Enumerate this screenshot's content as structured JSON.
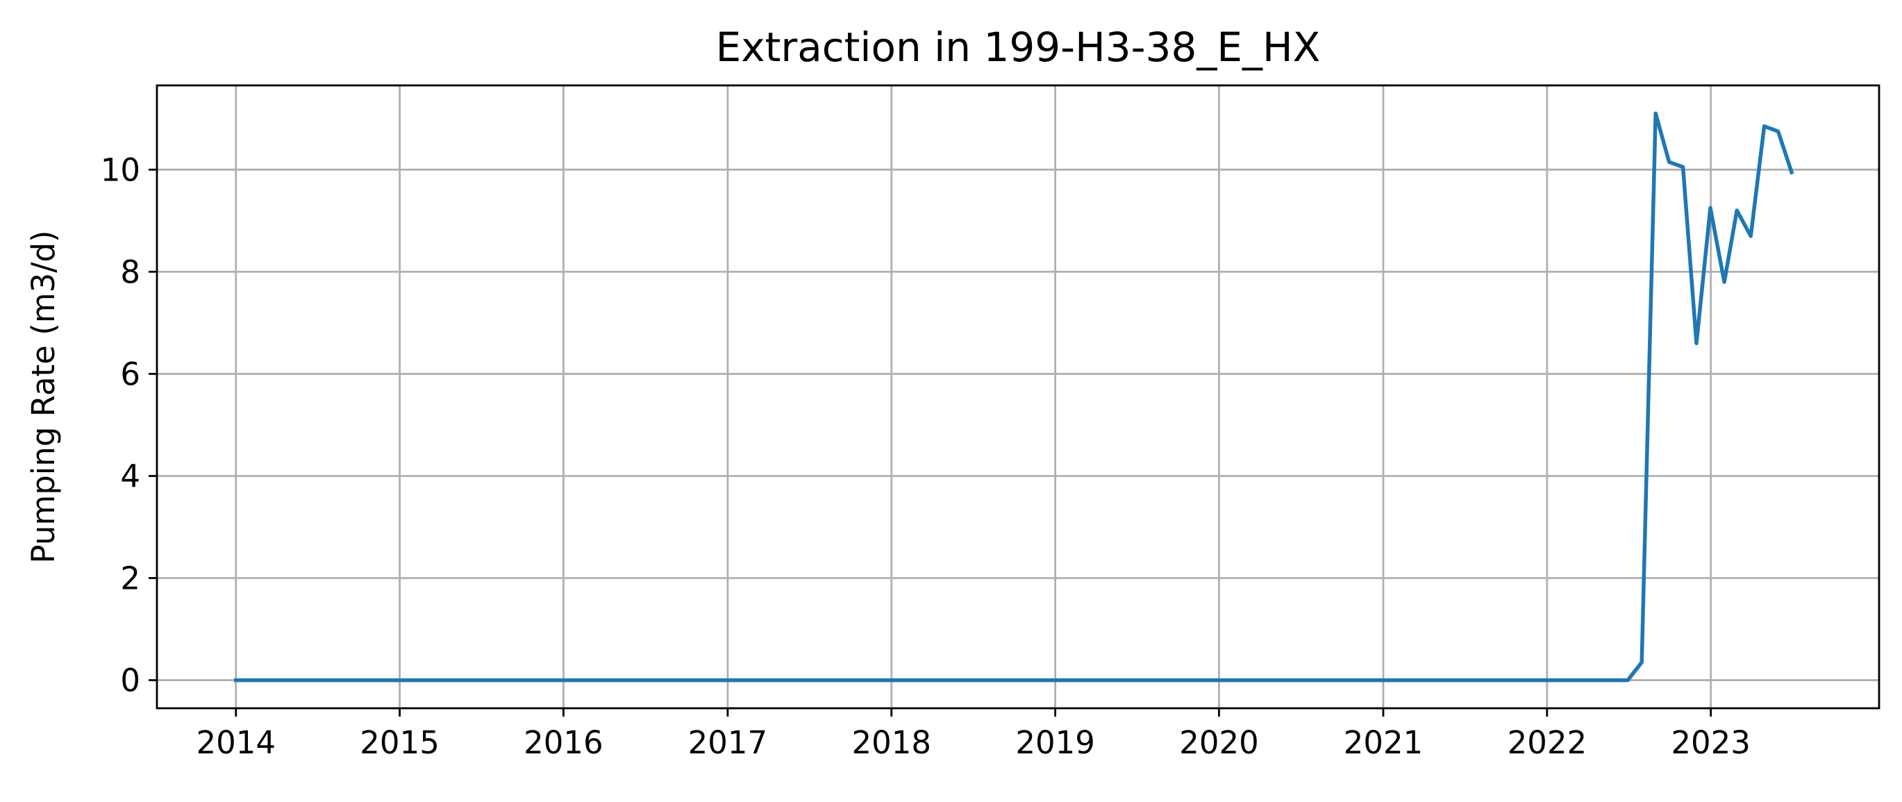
{
  "chart_data": {
    "type": "line",
    "title": "Extraction in 199-H3-38_E_HX",
    "xlabel": "",
    "ylabel": "Pumping Rate (m3/d)",
    "x_ticks": [
      "2014",
      "2015",
      "2016",
      "2017",
      "2018",
      "2019",
      "2020",
      "2021",
      "2022",
      "2023"
    ],
    "y_ticks": [
      "0",
      "2",
      "4",
      "6",
      "8",
      "10"
    ],
    "xlim": [
      "2013-07-09",
      "2024-01-11"
    ],
    "ylim": [
      -0.55,
      11.65
    ],
    "grid": true,
    "colors": {
      "series": "#1f77b4"
    },
    "series": [
      {
        "x": [
          "2014-01-01",
          "2022-06-30",
          "2022-07-31",
          "2022-08-31",
          "2022-09-30",
          "2022-10-31",
          "2022-11-30",
          "2022-12-31",
          "2023-01-31",
          "2023-02-28",
          "2023-03-31",
          "2023-04-30",
          "2023-05-31",
          "2023-06-30"
        ],
        "y": [
          0,
          0,
          0.35,
          11.1,
          10.15,
          10.05,
          6.6,
          9.25,
          7.8,
          9.2,
          8.7,
          10.85,
          10.75,
          9.95
        ]
      }
    ]
  }
}
